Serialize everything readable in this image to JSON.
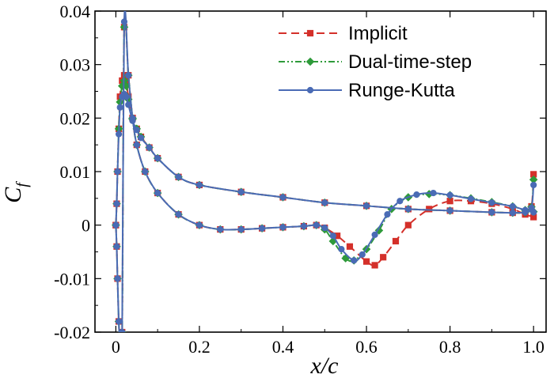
{
  "chart_data": {
    "type": "line",
    "title": "",
    "xlabel": "x/c",
    "ylabel": "Cf",
    "xlim": [
      -0.05,
      1.03
    ],
    "ylim": [
      -0.02,
      0.04
    ],
    "xticks": [
      "0",
      "0.2",
      "0.4",
      "0.6",
      "0.8",
      "1.0"
    ],
    "yticks": [
      "-0.02",
      "-0.01",
      "0",
      "0.01",
      "0.02",
      "0.03",
      "0.04"
    ],
    "legend_position": "top-right",
    "series": [
      {
        "name": "Implicit",
        "color": "#d4302a",
        "dash": "10,6",
        "marker": "square",
        "upper": {
          "x": [
            0,
            0.002,
            0.004,
            0.007,
            0.01,
            0.015,
            0.02,
            0.025,
            0.03,
            0.04,
            0.05,
            0.06,
            0.08,
            0.1,
            0.15,
            0.2,
            0.3,
            0.4,
            0.5,
            0.6,
            0.7,
            0.8,
            0.9,
            0.95,
            0.98,
            0.995,
            1.0
          ],
          "y": [
            0,
            0.004,
            0.01,
            0.018,
            0.024,
            0.027,
            0.028,
            0.027,
            0.024,
            0.02,
            0.018,
            0.0165,
            0.0145,
            0.0125,
            0.009,
            0.0075,
            0.0062,
            0.0052,
            0.0042,
            0.0036,
            0.003,
            0.0027,
            0.0024,
            0.0023,
            0.0024,
            0.0035,
            0.0095
          ]
        },
        "lower": {
          "x": [
            0,
            0.002,
            0.004,
            0.007,
            0.01,
            0.015,
            0.02,
            0.03,
            0.04,
            0.05,
            0.07,
            0.1,
            0.15,
            0.2,
            0.25,
            0.3,
            0.35,
            0.4,
            0.45,
            0.48,
            0.5,
            0.53,
            0.56,
            0.6,
            0.62,
            0.64,
            0.67,
            0.7,
            0.75,
            0.8,
            0.85,
            0.9,
            0.95,
            0.98,
            1.0
          ],
          "y": [
            0,
            -0.004,
            -0.01,
            -0.018,
            -0.022,
            -0.02,
            0.037,
            0.028,
            0.02,
            0.015,
            0.01,
            0.006,
            0.002,
            0.0,
            -0.0008,
            -0.0008,
            -0.0006,
            -0.0004,
            -0.0002,
            0.0,
            -0.0005,
            -0.002,
            -0.004,
            -0.0068,
            -0.0075,
            -0.006,
            -0.003,
            0.0,
            0.003,
            0.0045,
            0.0045,
            0.004,
            0.003,
            0.002,
            0.0015
          ]
        }
      },
      {
        "name": "Dual-time-step",
        "color": "#2e9a3a",
        "dash": "8,3,2,3,2,3",
        "marker": "diamond",
        "upper": {
          "x": [
            0,
            0.002,
            0.004,
            0.007,
            0.01,
            0.015,
            0.02,
            0.025,
            0.03,
            0.04,
            0.05,
            0.06,
            0.08,
            0.1,
            0.15,
            0.2,
            0.3,
            0.4,
            0.5,
            0.6,
            0.7,
            0.8,
            0.9,
            0.95,
            0.98,
            0.995,
            1.0
          ],
          "y": [
            0,
            0.004,
            0.01,
            0.018,
            0.023,
            0.026,
            0.027,
            0.026,
            0.0235,
            0.0198,
            0.018,
            0.0165,
            0.0145,
            0.0125,
            0.009,
            0.0075,
            0.0062,
            0.0052,
            0.0042,
            0.0036,
            0.003,
            0.0027,
            0.0024,
            0.0023,
            0.0024,
            0.0034,
            0.0085
          ]
        },
        "lower": {
          "x": [
            0,
            0.002,
            0.004,
            0.007,
            0.01,
            0.015,
            0.02,
            0.03,
            0.04,
            0.05,
            0.07,
            0.1,
            0.15,
            0.2,
            0.25,
            0.3,
            0.35,
            0.4,
            0.45,
            0.48,
            0.5,
            0.52,
            0.55,
            0.57,
            0.6,
            0.63,
            0.66,
            0.7,
            0.75,
            0.8,
            0.85,
            0.9,
            0.95,
            0.98,
            1.0
          ],
          "y": [
            0,
            -0.004,
            -0.01,
            -0.018,
            -0.022,
            -0.02,
            0.037,
            0.028,
            0.02,
            0.015,
            0.01,
            0.006,
            0.002,
            0.0,
            -0.0008,
            -0.0008,
            -0.0006,
            -0.0004,
            -0.0002,
            0.0,
            -0.0008,
            -0.003,
            -0.0062,
            -0.0066,
            -0.0045,
            -0.001,
            0.003,
            0.0052,
            0.0058,
            0.0056,
            0.005,
            0.0043,
            0.0035,
            0.0028,
            0.0025
          ]
        }
      },
      {
        "name": "Runge-Kutta",
        "color": "#4a6bb5",
        "dash": "",
        "marker": "circle",
        "upper": {
          "x": [
            0,
            0.002,
            0.004,
            0.007,
            0.01,
            0.015,
            0.02,
            0.025,
            0.03,
            0.04,
            0.05,
            0.06,
            0.08,
            0.1,
            0.15,
            0.2,
            0.3,
            0.4,
            0.5,
            0.6,
            0.7,
            0.8,
            0.9,
            0.95,
            0.98,
            0.995,
            1.0
          ],
          "y": [
            0,
            0.004,
            0.01,
            0.017,
            0.022,
            0.024,
            0.0245,
            0.024,
            0.0225,
            0.0195,
            0.0178,
            0.0163,
            0.0145,
            0.0125,
            0.009,
            0.0075,
            0.0062,
            0.0052,
            0.0042,
            0.0036,
            0.003,
            0.0027,
            0.0024,
            0.0023,
            0.0024,
            0.0032,
            0.0075
          ]
        },
        "lower": {
          "x": [
            0,
            0.002,
            0.004,
            0.007,
            0.01,
            0.015,
            0.02,
            0.03,
            0.04,
            0.05,
            0.07,
            0.1,
            0.15,
            0.2,
            0.25,
            0.3,
            0.35,
            0.4,
            0.45,
            0.48,
            0.5,
            0.52,
            0.54,
            0.57,
            0.59,
            0.62,
            0.65,
            0.68,
            0.72,
            0.76,
            0.8,
            0.85,
            0.9,
            0.95,
            0.98,
            1.0
          ],
          "y": [
            0,
            -0.004,
            -0.01,
            -0.018,
            -0.022,
            -0.02,
            0.038,
            0.028,
            0.02,
            0.015,
            0.01,
            0.006,
            0.002,
            0.0,
            -0.0008,
            -0.0008,
            -0.0006,
            -0.0004,
            -0.0002,
            0.0,
            -0.0005,
            -0.002,
            -0.0045,
            -0.0066,
            -0.0055,
            -0.0018,
            0.002,
            0.0045,
            0.0057,
            0.006,
            0.0056,
            0.0049,
            0.0042,
            0.0035,
            0.0028,
            0.0024
          ]
        }
      }
    ]
  }
}
